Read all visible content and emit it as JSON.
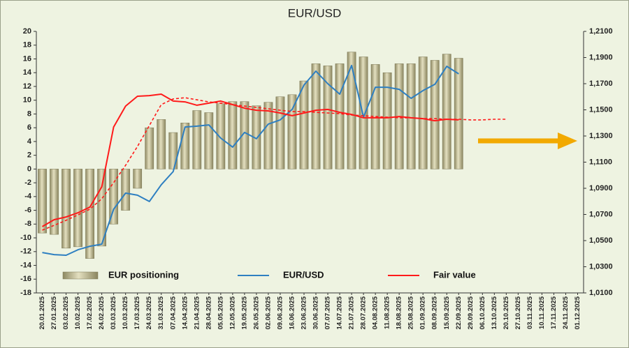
{
  "chart_data": {
    "type": "combo",
    "title": "EUR/USD",
    "categories": [
      "20.01.2025",
      "27.01.2025",
      "03.02.2025",
      "10.02.2025",
      "17.02.2025",
      "24.02.2025",
      "03.03.2025",
      "10.03.2025",
      "17.03.2025",
      "24.03.2025",
      "31.03.2025",
      "07.04.2025",
      "14.04.2025",
      "21.04.2025",
      "28.04.2025",
      "05.05.2025",
      "12.05.2025",
      "19.05.2025",
      "26.05.2025",
      "02.06.2025",
      "09.06.2025",
      "16.06.2025",
      "23.06.2025",
      "30.06.2025",
      "07.07.2025",
      "14.07.2025",
      "21.07.2025",
      "28.07.2025",
      "04.08.2025",
      "11.08.2025",
      "18.08.2025",
      "25.08.2025",
      "01.09.2025",
      "08.09.2025",
      "15.09.2025",
      "22.09.2025",
      "29.09.2025",
      "06.10.2025",
      "13.10.2025",
      "20.10.2025",
      "27.10.2025",
      "03.11.2025",
      "10.11.2025",
      "17.11.2025",
      "24.11.2025",
      "01.12.2025"
    ],
    "ylim": [
      -18,
      20
    ],
    "yticks": [
      -18,
      -16,
      -14,
      -12,
      -10,
      -8,
      -6,
      -4,
      -2,
      0,
      2,
      4,
      6,
      8,
      10,
      12,
      14,
      16,
      18,
      20
    ],
    "y2lim": [
      1.01,
      1.21
    ],
    "y2ticks": [
      {
        "value": 1.01,
        "label": "1,0100"
      },
      {
        "value": 1.03,
        "label": "1,0300"
      },
      {
        "value": 1.05,
        "label": "1,0500"
      },
      {
        "value": 1.07,
        "label": "1,0700"
      },
      {
        "value": 1.09,
        "label": "1,0900"
      },
      {
        "value": 1.11,
        "label": "1,1100"
      },
      {
        "value": 1.13,
        "label": "1,1300"
      },
      {
        "value": 1.15,
        "label": "1,1500"
      },
      {
        "value": 1.17,
        "label": "1,1700"
      },
      {
        "value": 1.19,
        "label": "1,1900"
      },
      {
        "value": 1.21,
        "label": "1,2100"
      }
    ],
    "series": [
      {
        "name": "EUR positioning",
        "type": "bar",
        "color": "#b8b38a",
        "values": [
          -9.3,
          -9.5,
          -11.5,
          -11.3,
          -13,
          -11.2,
          -8,
          -6,
          -2.8,
          6,
          7.2,
          5.3,
          6.7,
          8.5,
          8.2,
          9.5,
          9.8,
          9.8,
          9.2,
          9.7,
          10.5,
          10.8,
          12.8,
          15.3,
          15,
          15.3,
          17,
          16.3,
          15.2,
          14,
          15.3,
          15.3,
          16.3,
          15.8,
          16.7,
          16.1,
          null,
          null,
          null,
          null,
          null,
          null,
          null,
          null,
          null,
          null
        ]
      },
      {
        "name": "EUR/USD",
        "type": "line",
        "axis": "y2",
        "color": "#2e7fc1",
        "values": [
          1.0409,
          1.0393,
          1.0388,
          1.043,
          1.0457,
          1.0473,
          1.074,
          1.0863,
          1.0847,
          1.0799,
          1.0927,
          1.1028,
          1.1369,
          1.1375,
          1.1385,
          1.1284,
          1.1215,
          1.1327,
          1.1279,
          1.1391,
          1.1423,
          1.1503,
          1.169,
          1.1796,
          1.17,
          1.162,
          1.1839,
          1.1444,
          1.1673,
          1.1673,
          1.1657,
          1.1588,
          1.1647,
          1.1695,
          1.1833,
          1.1775,
          null,
          null,
          null,
          null,
          null,
          null,
          null,
          null,
          null,
          null
        ]
      },
      {
        "name": "Fair value",
        "type": "line",
        "axis": "y2",
        "color": "#ff1a1a",
        "values": [
          1.0607,
          1.066,
          1.0681,
          1.0713,
          1.0756,
          1.0911,
          1.1369,
          1.1529,
          1.1604,
          1.1609,
          1.162,
          1.1567,
          1.1561,
          1.1535,
          1.1551,
          1.1567,
          1.154,
          1.1513,
          1.1497,
          1.1492,
          1.1476,
          1.1455,
          1.1476,
          1.1497,
          1.1503,
          1.1481,
          1.1465,
          1.1439,
          1.1439,
          1.1439,
          1.1449,
          1.1439,
          1.1433,
          1.1417,
          1.1428,
          1.1423,
          null,
          null,
          null,
          null,
          null,
          null,
          null,
          null,
          null,
          null
        ]
      },
      {
        "type": "line",
        "axis": "y2",
        "color": "#ff1a1a",
        "dashed": true,
        "values": [
          1.058,
          1.0617,
          1.0655,
          1.0697,
          1.074,
          1.082,
          1.0943,
          1.1076,
          1.122,
          1.138,
          1.154,
          1.1583,
          1.1593,
          1.1577,
          1.1561,
          1.1551,
          1.154,
          1.1529,
          1.1519,
          1.1508,
          1.1497,
          1.1487,
          1.1487,
          1.1481,
          1.1476,
          1.1471,
          1.146,
          1.1455,
          1.1449,
          1.1444,
          1.1439,
          1.1439,
          1.1433,
          1.1433,
          1.1428,
          1.1428,
          1.1423,
          1.1423,
          1.1428,
          1.1428,
          null,
          null,
          null,
          null,
          null,
          null
        ]
      }
    ]
  }
}
